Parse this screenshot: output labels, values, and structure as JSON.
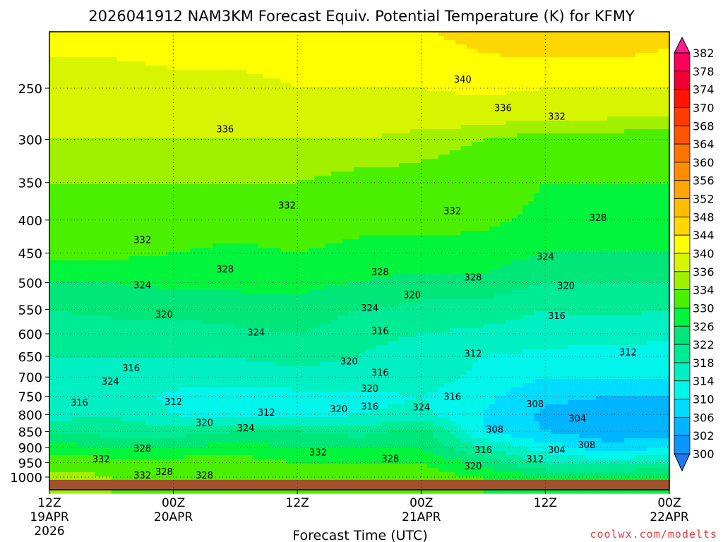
{
  "chart_data": {
    "type": "heatmap",
    "title": "2026041912 NAM3KM Forecast Equiv. Potential Temperature (K) for KFMY",
    "xlabel": "Forecast Time (UTC)",
    "ylabel": "",
    "credit": "coolwx.com/modelts",
    "x_hours": [
      0,
      6,
      12,
      18,
      24,
      30,
      36,
      42,
      48,
      54,
      60
    ],
    "xlim": [
      0,
      60
    ],
    "ylim": [
      205,
      1046
    ],
    "x_ticks": [
      {
        "hour": 0,
        "lines": [
          "12Z",
          "19APR",
          "2026"
        ]
      },
      {
        "hour": 12,
        "lines": [
          "00Z",
          "20APR"
        ]
      },
      {
        "hour": 24,
        "lines": [
          "12Z"
        ]
      },
      {
        "hour": 36,
        "lines": [
          "00Z",
          "21APR"
        ]
      },
      {
        "hour": 48,
        "lines": [
          "12Z"
        ]
      },
      {
        "hour": 60,
        "lines": [
          "00Z",
          "22APR"
        ]
      }
    ],
    "y_ticks": [
      250,
      300,
      350,
      400,
      450,
      500,
      550,
      600,
      650,
      700,
      750,
      800,
      850,
      900,
      950,
      1000
    ],
    "pressure_levels": [
      200,
      250,
      300,
      350,
      400,
      450,
      500,
      550,
      600,
      650,
      700,
      750,
      800,
      850,
      900,
      950,
      1000
    ],
    "values": [
      [
        342,
        342,
        342,
        342,
        342,
        342,
        344,
        346,
        348,
        348,
        346
      ],
      [
        338,
        338,
        339,
        339,
        340,
        340,
        340,
        341,
        340,
        340,
        340
      ],
      [
        336,
        336,
        336,
        336,
        336,
        336,
        335,
        334,
        333,
        333,
        332
      ],
      [
        334,
        334,
        334,
        334,
        334,
        333,
        333,
        332,
        330,
        330,
        330
      ],
      [
        333,
        332,
        332,
        332,
        332,
        331,
        331,
        331,
        329,
        328,
        328
      ],
      [
        331,
        331,
        330,
        329,
        330,
        329,
        329,
        328,
        326,
        326,
        326
      ],
      [
        326,
        326,
        327,
        327,
        327,
        326,
        324,
        325,
        322,
        322,
        322
      ],
      [
        322,
        323,
        323,
        324,
        325,
        322,
        321,
        320,
        318,
        319,
        318
      ],
      [
        320,
        320,
        320,
        321,
        322,
        319,
        318,
        317,
        316,
        316,
        315
      ],
      [
        318,
        318,
        318,
        318,
        320,
        318,
        316,
        314,
        313,
        312,
        312
      ],
      [
        316,
        317,
        316,
        316,
        316,
        316,
        316,
        313,
        310,
        310,
        310
      ],
      [
        314,
        316,
        313,
        312,
        313,
        313,
        314,
        311,
        307,
        306,
        306
      ],
      [
        316,
        318,
        314,
        312,
        313,
        314,
        315,
        310,
        305,
        304,
        304
      ],
      [
        322,
        320,
        320,
        322,
        322,
        320,
        324,
        310,
        306,
        303,
        303
      ],
      [
        328,
        326,
        326,
        328,
        326,
        326,
        326,
        318,
        312,
        308,
        310
      ],
      [
        332,
        332,
        332,
        332,
        330,
        330,
        330,
        324,
        318,
        316,
        318
      ],
      [
        336,
        334,
        332,
        333,
        332,
        332,
        332,
        330,
        326,
        326,
        328
      ]
    ],
    "ground_below_hpa": 1010,
    "ground_color": "#a0522d",
    "colorbar": {
      "labels": [
        382,
        378,
        374,
        370,
        368,
        364,
        360,
        356,
        352,
        348,
        344,
        340,
        336,
        334,
        330,
        326,
        322,
        318,
        314,
        310,
        306,
        302,
        300
      ],
      "bounds": [
        300,
        302,
        306,
        310,
        314,
        318,
        322,
        326,
        330,
        334,
        336,
        340,
        344,
        348,
        352,
        356,
        360,
        364,
        368,
        370,
        374,
        378,
        382
      ],
      "colors": [
        "#1e78f0",
        "#0a96ff",
        "#00b4ff",
        "#00dcff",
        "#00f5eb",
        "#00f0c3",
        "#00eb96",
        "#00e678",
        "#00f53c",
        "#4bf000",
        "#a0f000",
        "#d7f500",
        "#ffff00",
        "#ffd700",
        "#ffbe00",
        "#ffa500",
        "#ff8c00",
        "#ff7300",
        "#ff5500",
        "#ff3c00",
        "#ff1400",
        "#f00032",
        "#ff005a",
        "#ff1e8c"
      ]
    },
    "contour_labels": [
      {
        "t": 40.0,
        "p": 242,
        "v": "340"
      },
      {
        "t": 43.9,
        "p": 268,
        "v": "336"
      },
      {
        "t": 49.1,
        "p": 276,
        "v": "332"
      },
      {
        "t": 17.0,
        "p": 289,
        "v": "336"
      },
      {
        "t": 23.0,
        "p": 379,
        "v": "332"
      },
      {
        "t": 39.0,
        "p": 387,
        "v": "332"
      },
      {
        "t": 53.1,
        "p": 396,
        "v": "328"
      },
      {
        "t": 9.0,
        "p": 429,
        "v": "332"
      },
      {
        "t": 48.0,
        "p": 455,
        "v": "324"
      },
      {
        "t": 17.0,
        "p": 476,
        "v": "328"
      },
      {
        "t": 32.0,
        "p": 481,
        "v": "328"
      },
      {
        "t": 41.0,
        "p": 490,
        "v": "328"
      },
      {
        "t": 9.0,
        "p": 504,
        "v": "324"
      },
      {
        "t": 50.0,
        "p": 505,
        "v": "320"
      },
      {
        "t": 35.1,
        "p": 522,
        "v": "320"
      },
      {
        "t": 31.0,
        "p": 547,
        "v": "324"
      },
      {
        "t": 11.1,
        "p": 559,
        "v": "320"
      },
      {
        "t": 49.1,
        "p": 562,
        "v": "316"
      },
      {
        "t": 20.0,
        "p": 596,
        "v": "324"
      },
      {
        "t": 32.0,
        "p": 593,
        "v": "316"
      },
      {
        "t": 41.0,
        "p": 643,
        "v": "312"
      },
      {
        "t": 56.0,
        "p": 640,
        "v": "312"
      },
      {
        "t": 29.0,
        "p": 661,
        "v": "320"
      },
      {
        "t": 7.9,
        "p": 677,
        "v": "316"
      },
      {
        "t": 32.0,
        "p": 688,
        "v": "316"
      },
      {
        "t": 5.9,
        "p": 710,
        "v": "324"
      },
      {
        "t": 31.0,
        "p": 728,
        "v": "320"
      },
      {
        "t": 39.0,
        "p": 750,
        "v": "316"
      },
      {
        "t": 2.9,
        "p": 766,
        "v": "316"
      },
      {
        "t": 12.0,
        "p": 764,
        "v": "312"
      },
      {
        "t": 47.0,
        "p": 770,
        "v": "308"
      },
      {
        "t": 28.0,
        "p": 783,
        "v": "320"
      },
      {
        "t": 31.0,
        "p": 777,
        "v": "316"
      },
      {
        "t": 36.0,
        "p": 779,
        "v": "324"
      },
      {
        "t": 21.0,
        "p": 793,
        "v": "312"
      },
      {
        "t": 15.0,
        "p": 823,
        "v": "320"
      },
      {
        "t": 51.1,
        "p": 811,
        "v": "304"
      },
      {
        "t": 19.0,
        "p": 838,
        "v": "324"
      },
      {
        "t": 43.1,
        "p": 843,
        "v": "308"
      },
      {
        "t": 9.0,
        "p": 902,
        "v": "328"
      },
      {
        "t": 42.0,
        "p": 906,
        "v": "316"
      },
      {
        "t": 49.1,
        "p": 906,
        "v": "304"
      },
      {
        "t": 52.0,
        "p": 891,
        "v": "308"
      },
      {
        "t": 26.0,
        "p": 914,
        "v": "332"
      },
      {
        "t": 5.0,
        "p": 937,
        "v": "332"
      },
      {
        "t": 47.0,
        "p": 937,
        "v": "312"
      },
      {
        "t": 33.0,
        "p": 935,
        "v": "328"
      },
      {
        "t": 41.0,
        "p": 961,
        "v": "320"
      },
      {
        "t": 11.1,
        "p": 980,
        "v": "328"
      },
      {
        "t": 9.0,
        "p": 993,
        "v": "332"
      },
      {
        "t": 15.0,
        "p": 993,
        "v": "328"
      }
    ]
  }
}
